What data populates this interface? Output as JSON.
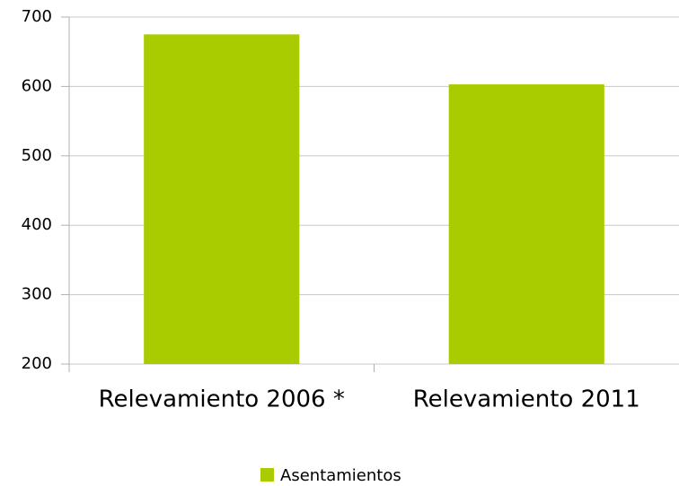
{
  "chart_data": {
    "type": "bar",
    "categories": [
      "Relevamiento 2006 *",
      "Relevamiento 2011"
    ],
    "series": [
      {
        "name": "Asentamientos",
        "color": "#a9cc00",
        "values": [
          675,
          603
        ]
      }
    ],
    "ylim": [
      200,
      700
    ],
    "yticks": [
      200,
      300,
      400,
      500,
      600,
      700
    ],
    "grid": true,
    "legend": "bottom"
  }
}
